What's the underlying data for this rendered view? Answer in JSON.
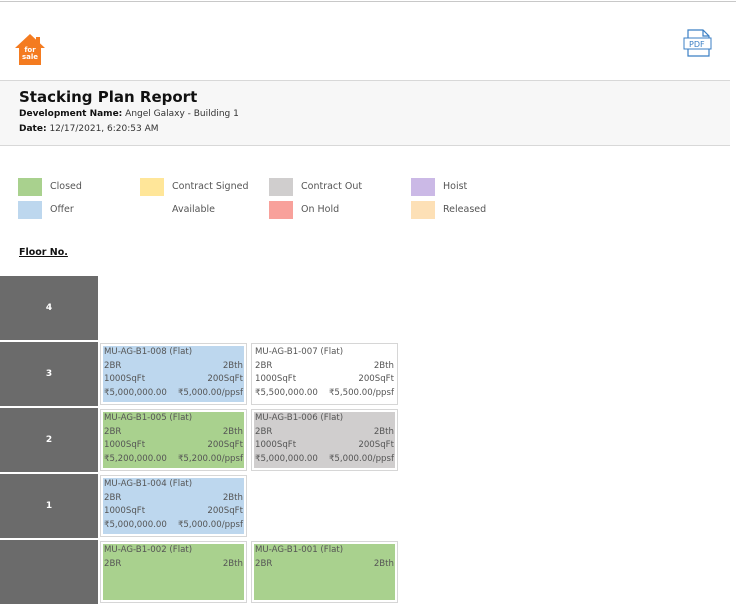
{
  "header": {
    "logo_text": "for sale",
    "pdf_label": "PDF"
  },
  "report": {
    "title": "Stacking Plan Report",
    "development_label": "Development Name:",
    "development_value": "Angel Galaxy - Building 1",
    "date_label": "Date:",
    "date_value": "12/17/2021, 6:20:53 AM"
  },
  "legend": [
    {
      "label": "Closed",
      "color": "#a9d18e"
    },
    {
      "label": "Contract Signed",
      "color": "#ffe699"
    },
    {
      "label": "Contract Out",
      "color": "#d0cece"
    },
    {
      "label": "Hoist",
      "color": "#cbb9e6"
    },
    {
      "label": "Offer",
      "color": "#bdd7ee"
    },
    {
      "label": "Available",
      "color": "#ffffff"
    },
    {
      "label": "On Hold",
      "color": "#f8a19b"
    },
    {
      "label": "Released",
      "color": "#fde0b6"
    }
  ],
  "floor_heading": "Floor No.",
  "floors": [
    {
      "label": "4",
      "units": []
    },
    {
      "label": "3",
      "units": [
        {
          "code": "MU-AG-B1-008 (Flat)",
          "beds": "2BR",
          "baths": "2Bth",
          "area": "1000SqFt",
          "balcony": "200SqFt",
          "price": "₹5,000,000.00",
          "ppsf": "₹5,000.00/ppsf",
          "color": "#bdd7ee"
        },
        {
          "code": "MU-AG-B1-007 (Flat)",
          "beds": "2BR",
          "baths": "2Bth",
          "area": "1000SqFt",
          "balcony": "200SqFt",
          "price": "₹5,500,000.00",
          "ppsf": "₹5,500.00/ppsf",
          "color": "#ffffff"
        }
      ]
    },
    {
      "label": "2",
      "units": [
        {
          "code": "MU-AG-B1-005 (Flat)",
          "beds": "2BR",
          "baths": "2Bth",
          "area": "1000SqFt",
          "balcony": "200SqFt",
          "price": "₹5,200,000.00",
          "ppsf": "₹5,200.00/ppsf",
          "color": "#a9d18e"
        },
        {
          "code": "MU-AG-B1-006 (Flat)",
          "beds": "2BR",
          "baths": "2Bth",
          "area": "1000SqFt",
          "balcony": "200SqFt",
          "price": "₹5,000,000.00",
          "ppsf": "₹5,000.00/ppsf",
          "color": "#d0cece"
        }
      ]
    },
    {
      "label": "1",
      "units": [
        {
          "code": "MU-AG-B1-004 (Flat)",
          "beds": "2BR",
          "baths": "2Bth",
          "area": "1000SqFt",
          "balcony": "200SqFt",
          "price": "₹5,000,000.00",
          "ppsf": "₹5,000.00/ppsf",
          "color": "#bdd7ee"
        }
      ]
    },
    {
      "units": [
        {
          "code": "MU-AG-B1-002 (Flat)",
          "beds": "2BR",
          "baths": "2Bth",
          "color": "#a9d18e"
        },
        {
          "code": "MU-AG-B1-001 (Flat)",
          "beds": "2BR",
          "baths": "2Bth",
          "color": "#a9d18e"
        }
      ]
    }
  ]
}
